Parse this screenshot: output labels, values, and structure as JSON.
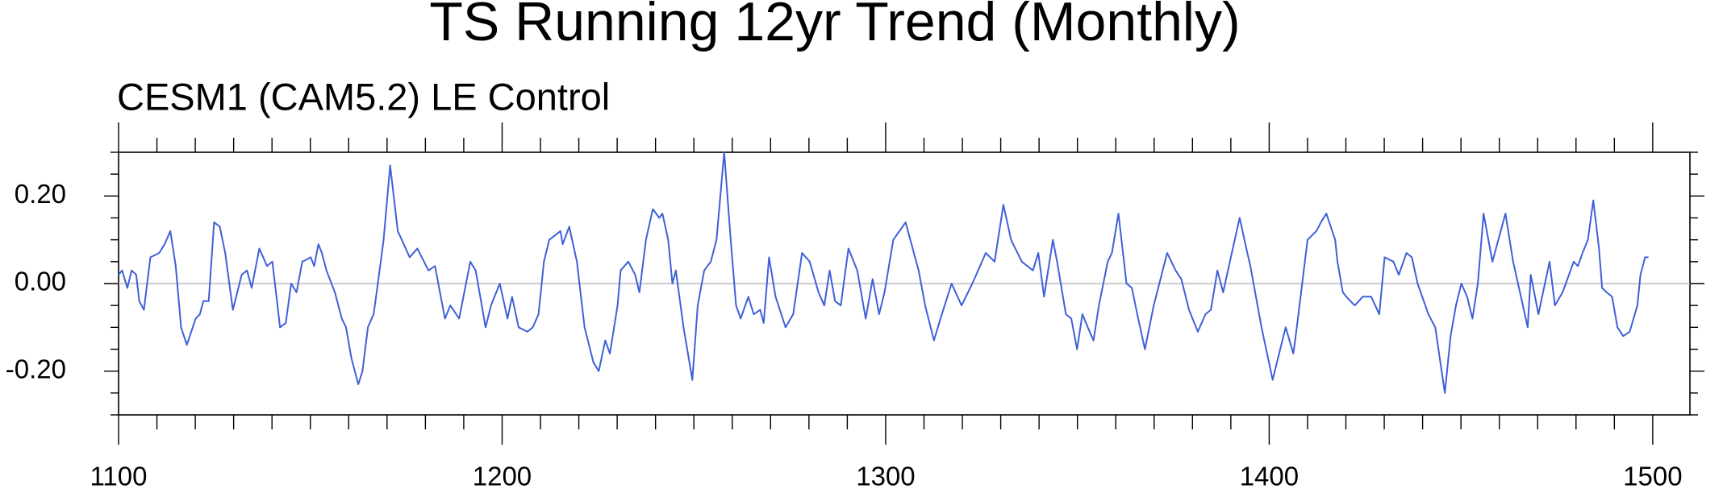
{
  "chart_data": {
    "type": "line",
    "title": "TS Running 12yr Trend (Monthly)",
    "subtitle": "CESM1 (CAM5.2) LE Control",
    "color": "#3f60d8",
    "reference_line": 0,
    "xlim": [
      1100,
      1509.7
    ],
    "ylim": [
      -0.3,
      0.3
    ],
    "xticks": [
      1100,
      1200,
      1300,
      1400,
      1500
    ],
    "xminorticks": [
      1110,
      1120,
      1130,
      1140,
      1150,
      1160,
      1170,
      1180,
      1190,
      1210,
      1220,
      1230,
      1240,
      1250,
      1260,
      1270,
      1280,
      1290,
      1310,
      1320,
      1330,
      1340,
      1350,
      1360,
      1370,
      1380,
      1390,
      1410,
      1420,
      1430,
      1440,
      1450,
      1460,
      1470,
      1480,
      1490
    ],
    "yticks": [
      {
        "value": -0.2,
        "label": "-0.20"
      },
      {
        "value": 0,
        "label": "0.00"
      },
      {
        "value": 0.2,
        "label": "0.20"
      }
    ],
    "yminorticks": [
      -0.3,
      -0.25,
      -0.15,
      -0.1,
      -0.05,
      0.05,
      0.1,
      0.15,
      0.25,
      0.3
    ],
    "x": [
      1100.0,
      1100.9,
      1102.3,
      1103.4,
      1104.6,
      1105.4,
      1106.6,
      1108.3,
      1110.6,
      1112.0,
      1113.5,
      1114.9,
      1116.3,
      1117.8,
      1120.1,
      1121.2,
      1122.1,
      1123.5,
      1124.9,
      1126.4,
      1127.8,
      1129.8,
      1132.1,
      1133.5,
      1134.7,
      1136.7,
      1138.7,
      1140.1,
      1142.1,
      1143.6,
      1145.0,
      1146.4,
      1147.9,
      1150.1,
      1151.0,
      1152.1,
      1153.0,
      1154.2,
      1156.4,
      1158.2,
      1159.3,
      1160.7,
      1162.5,
      1163.6,
      1165.0,
      1166.5,
      1167.6,
      1169.1,
      1170.8,
      1172.8,
      1175.9,
      1177.9,
      1180.8,
      1182.5,
      1185.1,
      1186.5,
      1188.8,
      1191.7,
      1193.1,
      1195.7,
      1197.1,
      1199.4,
      1201.4,
      1202.6,
      1204.3,
      1206.6,
      1208.0,
      1209.5,
      1210.9,
      1212.3,
      1215.2,
      1215.8,
      1217.5,
      1219.5,
      1221.5,
      1223.8,
      1225.2,
      1226.9,
      1228.1,
      1230.1,
      1230.9,
      1232.9,
      1234.7,
      1235.8,
      1237.5,
      1239.3,
      1241.0,
      1241.8,
      1243.3,
      1244.4,
      1245.3,
      1247.3,
      1249.6,
      1251.0,
      1252.7,
      1254.4,
      1255.9,
      1257.9,
      1259.6,
      1261.0,
      1262.2,
      1264.2,
      1265.6,
      1267.3,
      1268.2,
      1269.6,
      1271.3,
      1273.9,
      1275.9,
      1278.2,
      1280.2,
      1282.5,
      1284.0,
      1285.4,
      1286.8,
      1288.3,
      1290.3,
      1292.6,
      1294.8,
      1296.6,
      1298.3,
      1299.7,
      1302.0,
      1305.2,
      1308.6,
      1310.3,
      1312.6,
      1314.3,
      1317.2,
      1319.8,
      1322.6,
      1326.1,
      1328.4,
      1330.7,
      1332.7,
      1335.5,
      1338.4,
      1339.8,
      1341.3,
      1343.6,
      1344.7,
      1347.0,
      1348.4,
      1349.9,
      1351.3,
      1352.7,
      1354.2,
      1355.6,
      1357.9,
      1359.0,
      1360.7,
      1362.8,
      1364.2,
      1365.6,
      1367.6,
      1369.9,
      1373.4,
      1375.6,
      1377.1,
      1379.1,
      1381.4,
      1383.4,
      1384.8,
      1386.5,
      1388.0,
      1390.0,
      1392.3,
      1394.3,
      1395.1,
      1398.0,
      1400.9,
      1402.3,
      1404.3,
      1406.3,
      1407.2,
      1408.6,
      1410.0,
      1412.3,
      1413.5,
      1414.9,
      1417.2,
      1417.8,
      1419.2,
      1420.1,
      1422.3,
      1424.4,
      1426.6,
      1428.7,
      1430.1,
      1432.4,
      1433.8,
      1435.8,
      1437.2,
      1438.7,
      1441.5,
      1443.3,
      1445.8,
      1447.3,
      1448.7,
      1450.1,
      1451.6,
      1453.0,
      1454.4,
      1455.9,
      1458.2,
      1461.6,
      1463.6,
      1465.9,
      1467.4,
      1468.2,
      1470.2,
      1473.1,
      1474.5,
      1476.5,
      1479.4,
      1480.5,
      1481.7,
      1483.1,
      1484.5,
      1486.0,
      1486.8,
      1488.0,
      1489.4,
      1490.8,
      1492.3,
      1494.0,
      1496.0,
      1496.8,
      1498.0,
      1498.9
    ],
    "values": [
      0.02,
      0.03,
      -0.01,
      0.03,
      0.02,
      -0.04,
      -0.06,
      0.06,
      0.07,
      0.09,
      0.12,
      0.04,
      -0.1,
      -0.14,
      -0.08,
      -0.07,
      -0.04,
      -0.04,
      0.14,
      0.13,
      0.07,
      -0.06,
      0.02,
      0.03,
      -0.01,
      0.08,
      0.04,
      0.05,
      -0.1,
      -0.09,
      0.0,
      -0.02,
      0.05,
      0.06,
      0.04,
      0.09,
      0.07,
      0.03,
      -0.02,
      -0.08,
      -0.1,
      -0.17,
      -0.23,
      -0.2,
      -0.1,
      -0.07,
      0.0,
      0.1,
      0.27,
      0.12,
      0.06,
      0.08,
      0.03,
      0.04,
      -0.08,
      -0.05,
      -0.08,
      0.05,
      0.03,
      -0.1,
      -0.05,
      0.0,
      -0.08,
      -0.03,
      -0.1,
      -0.11,
      -0.1,
      -0.07,
      0.05,
      0.1,
      0.12,
      0.09,
      0.13,
      0.05,
      -0.1,
      -0.18,
      -0.2,
      -0.13,
      -0.16,
      -0.05,
      0.03,
      0.05,
      0.02,
      -0.02,
      0.1,
      0.17,
      0.15,
      0.16,
      0.1,
      0.0,
      0.03,
      -0.1,
      -0.22,
      -0.05,
      0.03,
      0.05,
      0.1,
      0.3,
      0.1,
      -0.05,
      -0.08,
      -0.03,
      -0.07,
      -0.06,
      -0.09,
      0.06,
      -0.03,
      -0.1,
      -0.07,
      0.07,
      0.05,
      -0.02,
      -0.05,
      0.03,
      -0.04,
      -0.05,
      0.08,
      0.03,
      -0.08,
      0.01,
      -0.07,
      -0.02,
      0.1,
      0.14,
      0.03,
      -0.05,
      -0.13,
      -0.08,
      0.0,
      -0.05,
      0.0,
      0.07,
      0.05,
      0.18,
      0.1,
      0.05,
      0.03,
      0.07,
      -0.03,
      0.1,
      0.05,
      -0.07,
      -0.08,
      -0.15,
      -0.07,
      -0.1,
      -0.13,
      -0.05,
      0.05,
      0.07,
      0.16,
      0.0,
      -0.01,
      -0.07,
      -0.15,
      -0.05,
      0.07,
      0.03,
      0.01,
      -0.06,
      -0.11,
      -0.07,
      -0.06,
      0.03,
      -0.02,
      0.06,
      0.15,
      0.07,
      0.04,
      -0.1,
      -0.22,
      -0.17,
      -0.1,
      -0.16,
      -0.1,
      0.0,
      0.1,
      0.12,
      0.14,
      0.16,
      0.1,
      0.05,
      -0.02,
      -0.03,
      -0.05,
      -0.03,
      -0.03,
      -0.07,
      0.06,
      0.05,
      0.02,
      0.07,
      0.06,
      0.0,
      -0.07,
      -0.1,
      -0.25,
      -0.12,
      -0.05,
      0.0,
      -0.03,
      -0.08,
      0.0,
      0.16,
      0.05,
      0.16,
      0.05,
      -0.04,
      -0.1,
      0.02,
      -0.07,
      0.05,
      -0.05,
      -0.02,
      0.05,
      0.04,
      0.07,
      0.1,
      0.19,
      0.08,
      -0.01,
      -0.02,
      -0.03,
      -0.1,
      -0.12,
      -0.11,
      -0.05,
      0.02,
      0.06,
      0.06
    ]
  }
}
